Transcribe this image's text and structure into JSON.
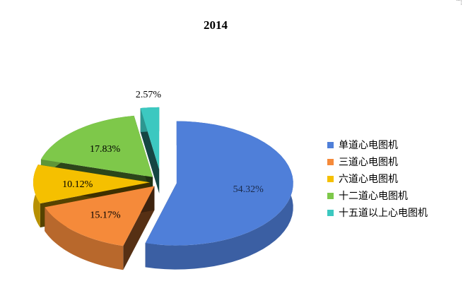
{
  "chart_data": {
    "type": "pie",
    "style": "3d-exploded",
    "title": "2014",
    "legend_position": "right",
    "slices": [
      {
        "label": "单道心电图机",
        "value": 54.32,
        "display": "54.32%",
        "color": "#4f7fd9"
      },
      {
        "label": "三道心电图机",
        "value": 15.17,
        "display": "15.17%",
        "color": "#f58a3a"
      },
      {
        "label": "六道心电图机",
        "value": 10.12,
        "display": "10.12%",
        "color": "#f5c000"
      },
      {
        "label": "十二道心电图机",
        "value": 17.83,
        "display": "17.83%",
        "color": "#7ec84a"
      },
      {
        "label": "十五道以上心电图机",
        "value": 2.57,
        "display": "2.57%",
        "color": "#3cc8c0"
      }
    ]
  }
}
